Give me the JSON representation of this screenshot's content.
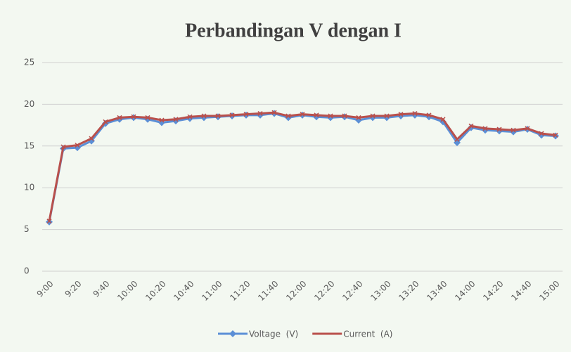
{
  "chart_data": {
    "type": "line",
    "title": "Perbandingan V dengan I",
    "categories": [
      "9:00",
      null,
      "9:20",
      null,
      "9:40",
      null,
      "10:00",
      null,
      "10:20",
      null,
      "10:40",
      null,
      "11:00",
      null,
      "11:20",
      null,
      "11:40",
      null,
      "12:00",
      null,
      "12:20",
      null,
      "12:40",
      null,
      "13:00",
      null,
      "13:20",
      null,
      "13:40",
      null,
      "14:00",
      null,
      "14:20",
      null,
      "14:40",
      null,
      "15:00"
    ],
    "series": [
      {
        "name": "Voltage  (V)",
        "color": "#5b8fd6",
        "values": [
          5.9,
          14.7,
          14.8,
          15.6,
          17.7,
          18.2,
          18.4,
          18.2,
          17.8,
          18.0,
          18.3,
          18.4,
          18.5,
          18.6,
          18.7,
          18.7,
          18.9,
          18.4,
          18.7,
          18.5,
          18.4,
          18.5,
          18.1,
          18.4,
          18.4,
          18.6,
          18.7,
          18.5,
          17.9,
          15.4,
          17.2,
          16.9,
          16.8,
          16.7,
          17.0,
          16.3,
          16.2
        ]
      },
      {
        "name": "Current  (A)",
        "color": "#b9504c",
        "values": [
          6.0,
          14.9,
          15.1,
          15.9,
          17.9,
          18.4,
          18.5,
          18.4,
          18.1,
          18.2,
          18.5,
          18.6,
          18.6,
          18.7,
          18.8,
          18.9,
          19.0,
          18.6,
          18.8,
          18.7,
          18.6,
          18.6,
          18.4,
          18.6,
          18.6,
          18.8,
          18.9,
          18.7,
          18.2,
          15.8,
          17.4,
          17.1,
          17.0,
          16.9,
          17.1,
          16.5,
          16.3
        ]
      }
    ],
    "ylim": [
      0,
      25
    ],
    "yticks": [
      0,
      5,
      10,
      15,
      20,
      25
    ],
    "grid": true,
    "legend": "bottom"
  }
}
